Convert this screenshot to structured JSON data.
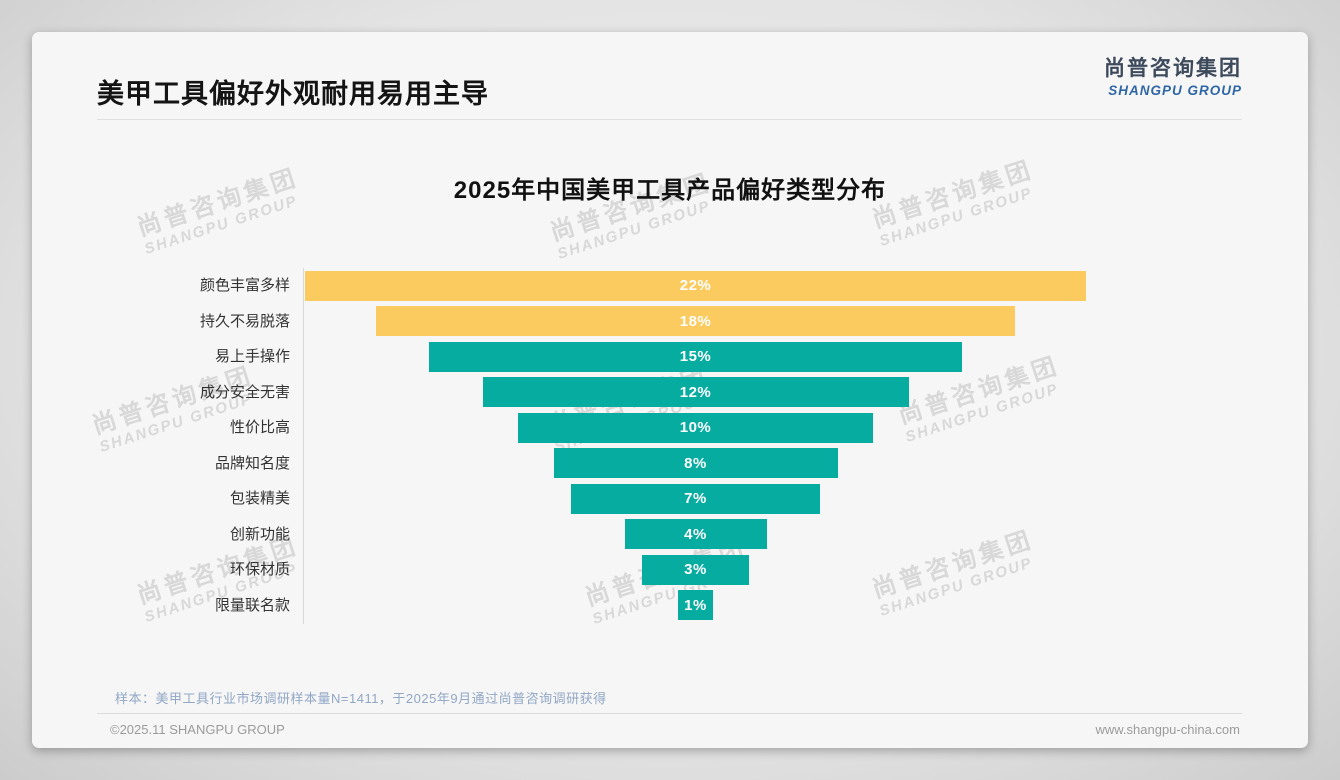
{
  "page": {
    "slide_title": "美甲工具偏好外观耐用易用主导",
    "logo": {
      "cn": "尚普咨询集团",
      "en": "SHANGPU GROUP"
    },
    "watermark": {
      "cn": "尚普咨询集团",
      "en": "SHANGPU GROUP"
    },
    "footnote": "样本：美甲工具行业市场调研样本量N=1411，于2025年9月通过尚普咨询调研获得",
    "footer_left": "©2025.11 SHANGPU GROUP",
    "footer_right": "www.shangpu-china.com"
  },
  "chart_data": {
    "type": "bar",
    "subtype": "centered-funnel",
    "orientation": "horizontal",
    "title": "2025年中国美甲工具产品偏好类型分布",
    "categories": [
      "颜色丰富多样",
      "持久不易脱落",
      "易上手操作",
      "成分安全无害",
      "性价比高",
      "品牌知名度",
      "包装精美",
      "创新功能",
      "环保材质",
      "限量联名款"
    ],
    "values": [
      22,
      18,
      15,
      12,
      10,
      8,
      7,
      4,
      3,
      1
    ],
    "value_labels": [
      "22%",
      "18%",
      "15%",
      "12%",
      "10%",
      "8%",
      "7%",
      "4%",
      "3%",
      "1%"
    ],
    "value_unit": "%",
    "bar_colors": [
      "#FBCB60",
      "#FBCB60",
      "#07ACA1",
      "#07ACA1",
      "#07ACA1",
      "#07ACA1",
      "#07ACA1",
      "#07ACA1",
      "#07ACA1",
      "#07ACA1"
    ],
    "colors": {
      "yellow": "#FBCB60",
      "teal": "#07ACA1"
    },
    "value_label_position": "inside-center",
    "legend": "none",
    "grid": "off"
  }
}
